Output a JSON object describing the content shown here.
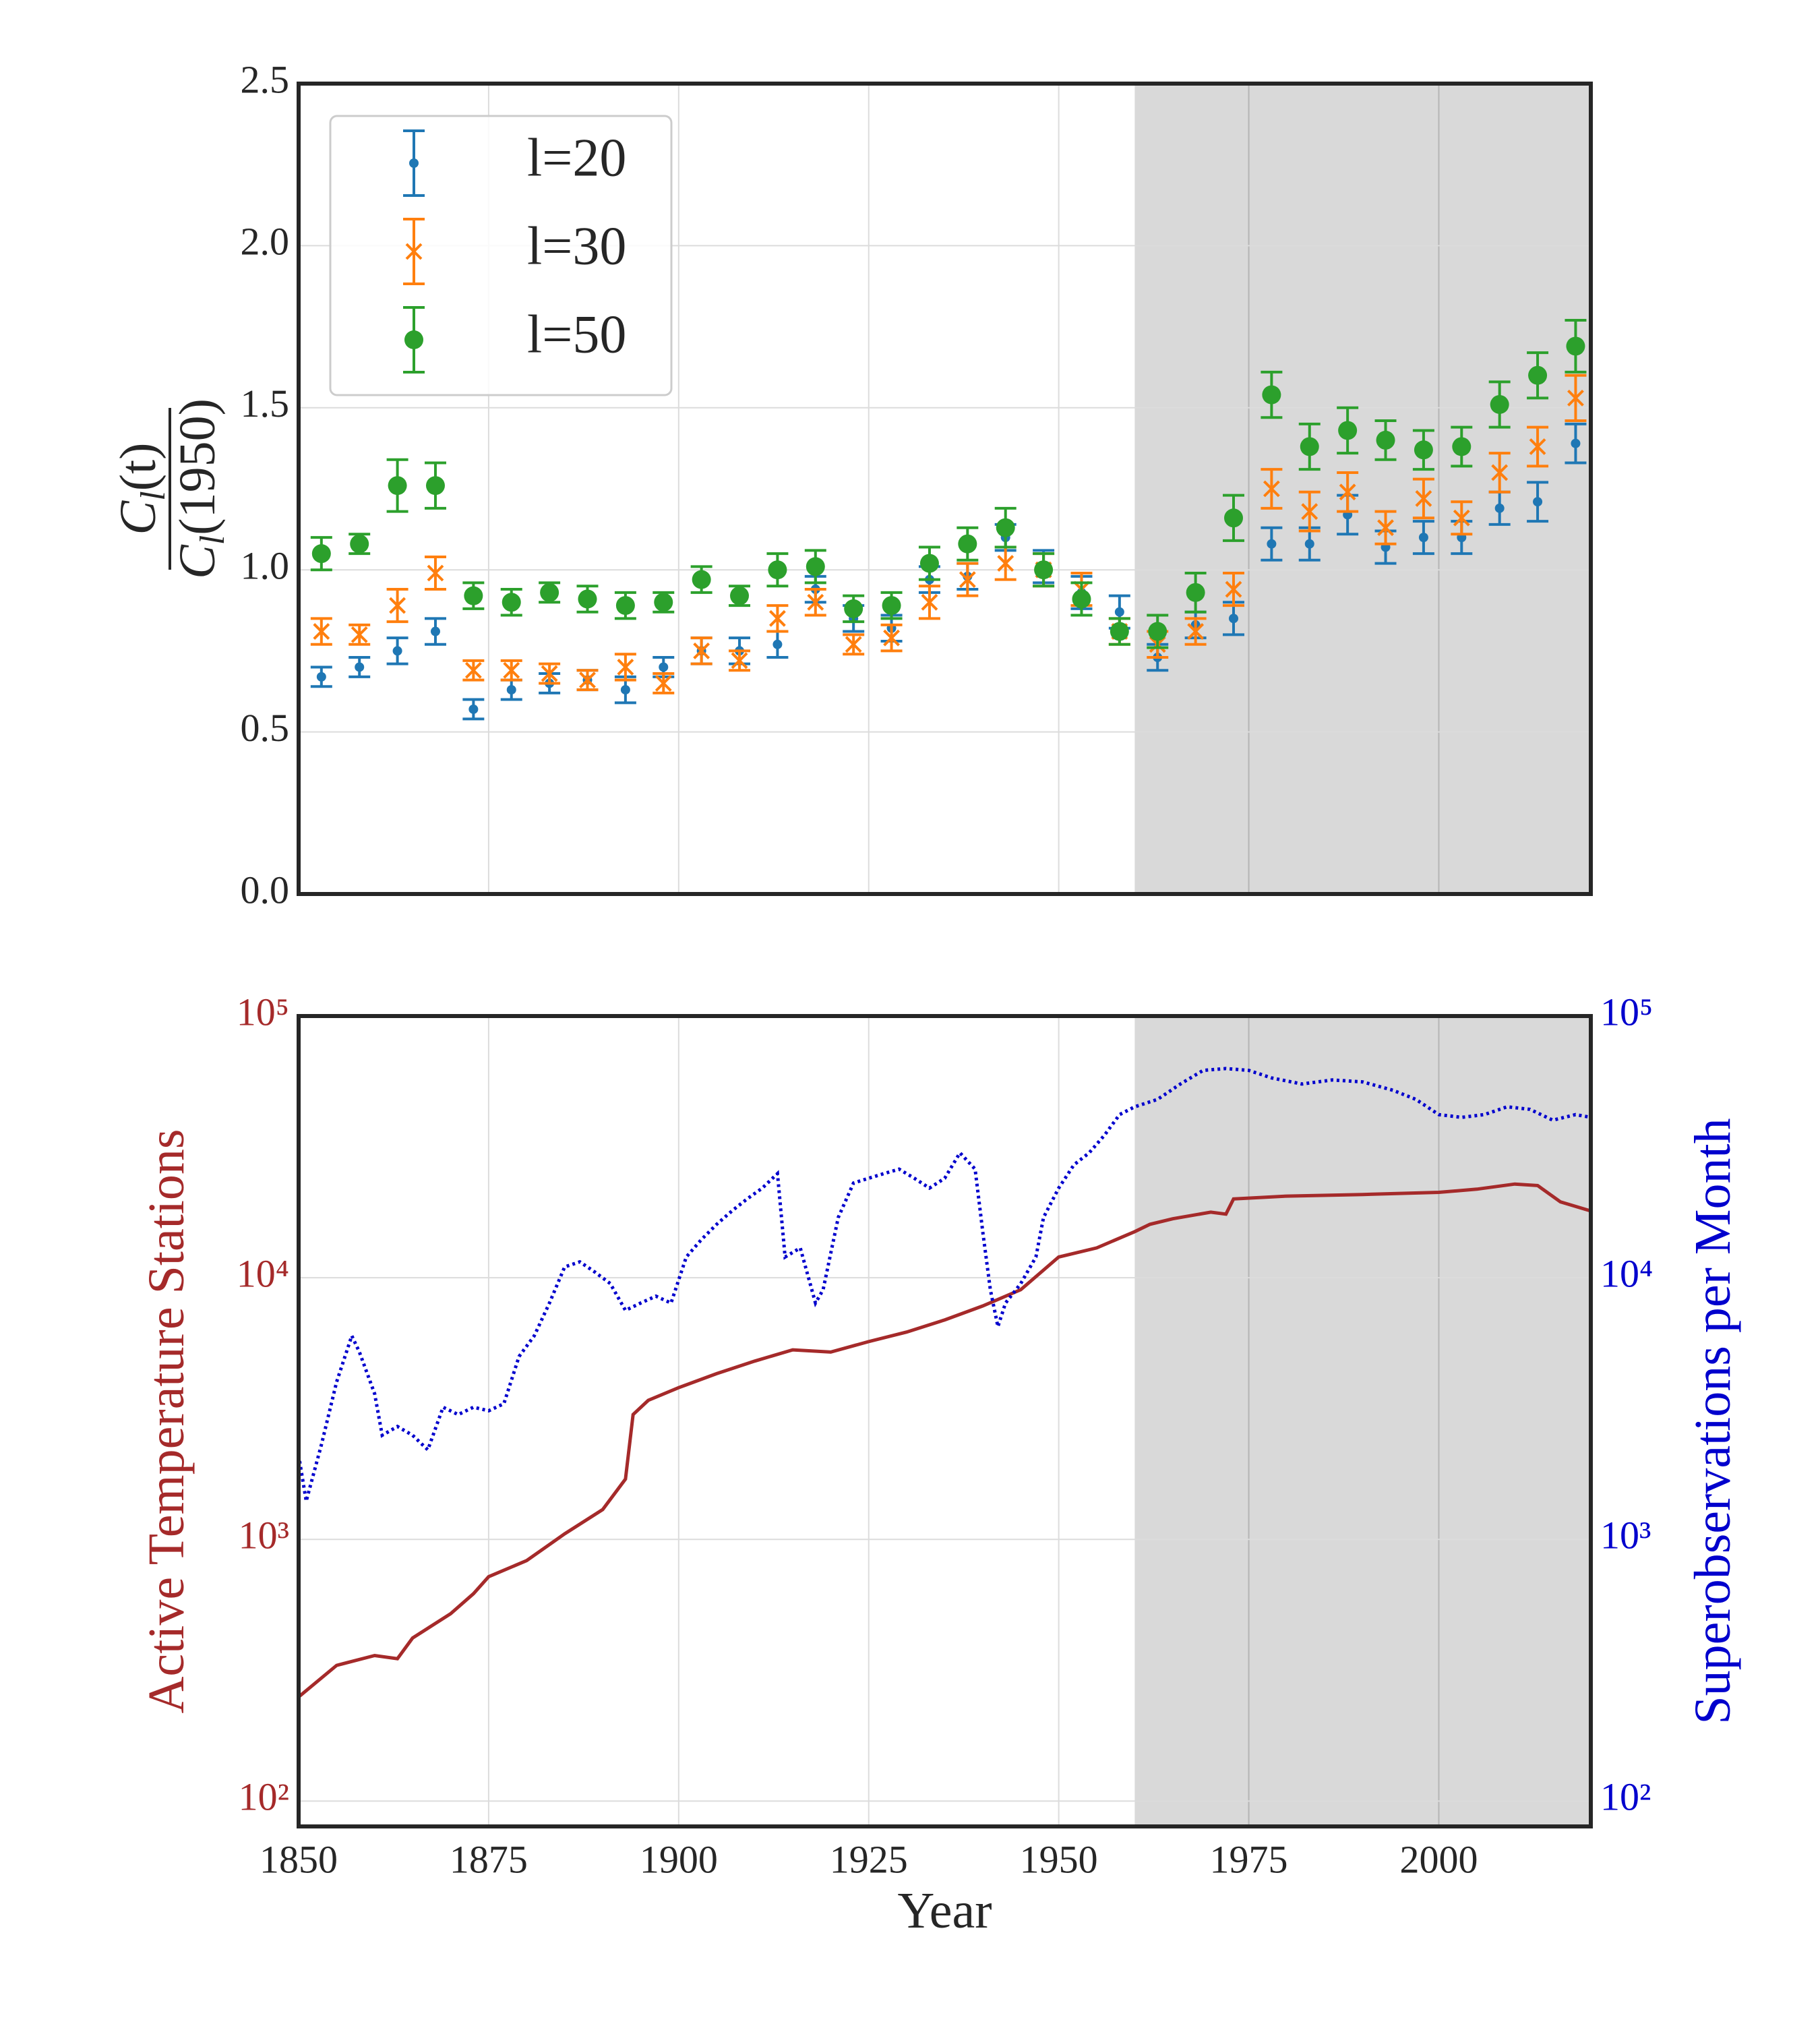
{
  "chart_data": [
    {
      "type": "errorbar",
      "ylabel": {
        "numerator": {
          "symbol": "C",
          "subscript": "l",
          "argument": "(t)"
        },
        "denominator": {
          "symbol": "C",
          "subscript": "l",
          "argument": "(1950)"
        }
      },
      "xlim": [
        1850,
        2020
      ],
      "xticks": [
        1850,
        1875,
        1900,
        1925,
        1950,
        1975,
        2000
      ],
      "show_xtick_labels": false,
      "ylim": [
        0,
        2.5
      ],
      "yticks": [
        {
          "value": 0,
          "label": "0.0"
        },
        0.5,
        {
          "value": 1,
          "label": "1.0"
        },
        1.5,
        {
          "value": 2,
          "label": "2.0"
        },
        2.5
      ],
      "grid": true,
      "shade": [
        1960,
        2020
      ],
      "shade_color": "#d9d9d9",
      "legend": "upper left",
      "x": [
        1853,
        1858,
        1863,
        1868,
        1873,
        1878,
        1883,
        1888,
        1893,
        1898,
        1903,
        1908,
        1913,
        1918,
        1923,
        1928,
        1933,
        1938,
        1943,
        1948,
        1953,
        1958,
        1963,
        1968,
        1973,
        1978,
        1983,
        1988,
        1993,
        1998,
        2003,
        2008,
        2013,
        2018
      ],
      "series": [
        {
          "name": "l=20",
          "color": "#1f77b4",
          "marker": "dot",
          "values": [
            0.67,
            0.7,
            0.75,
            0.81,
            0.57,
            0.63,
            0.65,
            0.66,
            0.63,
            0.7,
            0.75,
            0.75,
            0.77,
            0.94,
            0.85,
            0.82,
            0.97,
            0.98,
            1.1,
            1.01,
            0.93,
            0.87,
            0.73,
            0.83,
            0.85,
            1.08,
            1.08,
            1.17,
            1.07,
            1.1,
            1.1,
            1.19,
            1.21,
            1.39
          ],
          "errors": [
            0.03,
            0.03,
            0.04,
            0.04,
            0.03,
            0.03,
            0.03,
            0.03,
            0.04,
            0.03,
            0.04,
            0.04,
            0.04,
            0.04,
            0.04,
            0.04,
            0.04,
            0.04,
            0.04,
            0.05,
            0.05,
            0.05,
            0.04,
            0.04,
            0.05,
            0.05,
            0.05,
            0.06,
            0.05,
            0.05,
            0.05,
            0.05,
            0.06,
            0.06
          ]
        },
        {
          "name": "l=30",
          "color": "#ff7f0e",
          "marker": "x",
          "values": [
            0.81,
            0.8,
            0.89,
            0.99,
            0.69,
            0.69,
            0.68,
            0.66,
            0.7,
            0.65,
            0.75,
            0.72,
            0.85,
            0.9,
            0.77,
            0.79,
            0.9,
            0.97,
            1.02,
            1.0,
            0.94,
            0.81,
            0.77,
            0.81,
            0.94,
            1.25,
            1.18,
            1.24,
            1.13,
            1.22,
            1.16,
            1.3,
            1.38,
            1.53
          ],
          "errors": [
            0.04,
            0.03,
            0.05,
            0.05,
            0.03,
            0.03,
            0.03,
            0.03,
            0.04,
            0.03,
            0.04,
            0.03,
            0.04,
            0.04,
            0.03,
            0.04,
            0.05,
            0.05,
            0.05,
            0.05,
            0.05,
            0.04,
            0.04,
            0.04,
            0.05,
            0.06,
            0.06,
            0.06,
            0.05,
            0.06,
            0.05,
            0.06,
            0.06,
            0.07
          ]
        },
        {
          "name": "l=50",
          "color": "#2ca02c",
          "marker": "circle",
          "values": [
            1.05,
            1.08,
            1.26,
            1.26,
            0.92,
            0.9,
            0.93,
            0.91,
            0.89,
            0.9,
            0.97,
            0.92,
            1.0,
            1.01,
            0.88,
            0.89,
            1.02,
            1.08,
            1.13,
            1.0,
            0.91,
            0.81,
            0.81,
            0.93,
            1.16,
            1.54,
            1.38,
            1.43,
            1.4,
            1.37,
            1.38,
            1.51,
            1.6,
            1.69
          ],
          "errors": [
            0.05,
            0.03,
            0.08,
            0.07,
            0.04,
            0.04,
            0.03,
            0.04,
            0.04,
            0.03,
            0.04,
            0.03,
            0.05,
            0.05,
            0.04,
            0.04,
            0.05,
            0.05,
            0.06,
            0.05,
            0.05,
            0.04,
            0.05,
            0.06,
            0.07,
            0.07,
            0.07,
            0.07,
            0.06,
            0.06,
            0.06,
            0.07,
            0.07,
            0.08
          ]
        }
      ]
    },
    {
      "type": "line",
      "xlabel": "Year",
      "ylabel": "Active Temperature Stations",
      "ylabel_color": "#a52a2a",
      "y2label": "Superobservations per Month",
      "y2label_color": "#0000cd",
      "xlim": [
        1850,
        2020
      ],
      "xticks": [
        1850,
        1875,
        1900,
        1925,
        1950,
        1975,
        2000
      ],
      "yscale": "log",
      "ylim": [
        80,
        100000
      ],
      "yticks": [
        {
          "value": 100,
          "label": "10²"
        },
        {
          "value": 1000,
          "label": "10³"
        },
        {
          "value": 10000,
          "label": "10⁴"
        },
        {
          "value": 100000,
          "label": "10⁵"
        }
      ],
      "y2lim": [
        80,
        100000
      ],
      "y2ticks": [
        {
          "value": 100,
          "label": "10²"
        },
        {
          "value": 1000,
          "label": "10³"
        },
        {
          "value": 10000,
          "label": "10⁴"
        },
        {
          "value": 100000,
          "label": "10⁵"
        }
      ],
      "grid": true,
      "shade": [
        1960,
        2020
      ],
      "shade_color": "#d9d9d9",
      "series": [
        {
          "color": "#a52a2a",
          "style": "solid",
          "x": [
            1850,
            1855,
            1860,
            1863,
            1865,
            1870,
            1873,
            1875,
            1880,
            1885,
            1890,
            1893,
            1894,
            1896,
            1900,
            1905,
            1910,
            1915,
            1920,
            1925,
            1930,
            1935,
            1940,
            1945,
            1950,
            1955,
            1960,
            1962,
            1965,
            1970,
            1972,
            1973,
            1980,
            1990,
            2000,
            2005,
            2010,
            2013,
            2016,
            2020
          ],
          "values": [
            250,
            330,
            360,
            350,
            420,
            520,
            620,
            720,
            830,
            1050,
            1300,
            1700,
            3000,
            3400,
            3800,
            4300,
            4800,
            5300,
            5200,
            5700,
            6200,
            6900,
            7800,
            9000,
            12000,
            13000,
            15000,
            16000,
            16800,
            17800,
            17500,
            20000,
            20500,
            20800,
            21200,
            21800,
            22800,
            22500,
            19500,
            18000
          ]
        },
        {
          "color": "#0000cd",
          "style": "dotted",
          "axis": "y2",
          "x": [
            1850,
            1851,
            1853,
            1855,
            1857,
            1858,
            1860,
            1861,
            1863,
            1865,
            1867,
            1869,
            1871,
            1873,
            1875,
            1877,
            1879,
            1881,
            1883,
            1885,
            1887,
            1889,
            1891,
            1893,
            1895,
            1897,
            1899,
            1901,
            1903,
            1905,
            1907,
            1909,
            1911,
            1913,
            1914,
            1916,
            1918,
            1919,
            1921,
            1923,
            1925,
            1927,
            1929,
            1931,
            1933,
            1935,
            1937,
            1939,
            1940,
            1941,
            1942,
            1943,
            1945,
            1947,
            1948,
            1950,
            1952,
            1954,
            1956,
            1958,
            1960,
            1963,
            1966,
            1969,
            1972,
            1975,
            1978,
            1982,
            1986,
            1990,
            1994,
            1997,
            2000,
            2003,
            2006,
            2009,
            2012,
            2015,
            2018,
            2020
          ],
          "values": [
            2100,
            1400,
            2300,
            4000,
            6000,
            5200,
            3600,
            2500,
            2700,
            2500,
            2200,
            3200,
            3000,
            3200,
            3100,
            3300,
            5000,
            6000,
            8000,
            11000,
            11500,
            10500,
            9500,
            7500,
            8000,
            8500,
            8000,
            12000,
            14000,
            16000,
            18000,
            20000,
            22000,
            25000,
            12000,
            13000,
            8000,
            9000,
            17000,
            23000,
            24000,
            25000,
            26000,
            24000,
            22000,
            24000,
            30000,
            26000,
            15000,
            9000,
            6500,
            8000,
            9500,
            12000,
            17000,
            22000,
            27000,
            30000,
            35000,
            42000,
            45000,
            48000,
            55000,
            62000,
            63000,
            62000,
            58000,
            55000,
            57000,
            56000,
            52000,
            48000,
            42000,
            41000,
            42000,
            45000,
            44000,
            40000,
            42000,
            41000
          ]
        }
      ]
    }
  ]
}
